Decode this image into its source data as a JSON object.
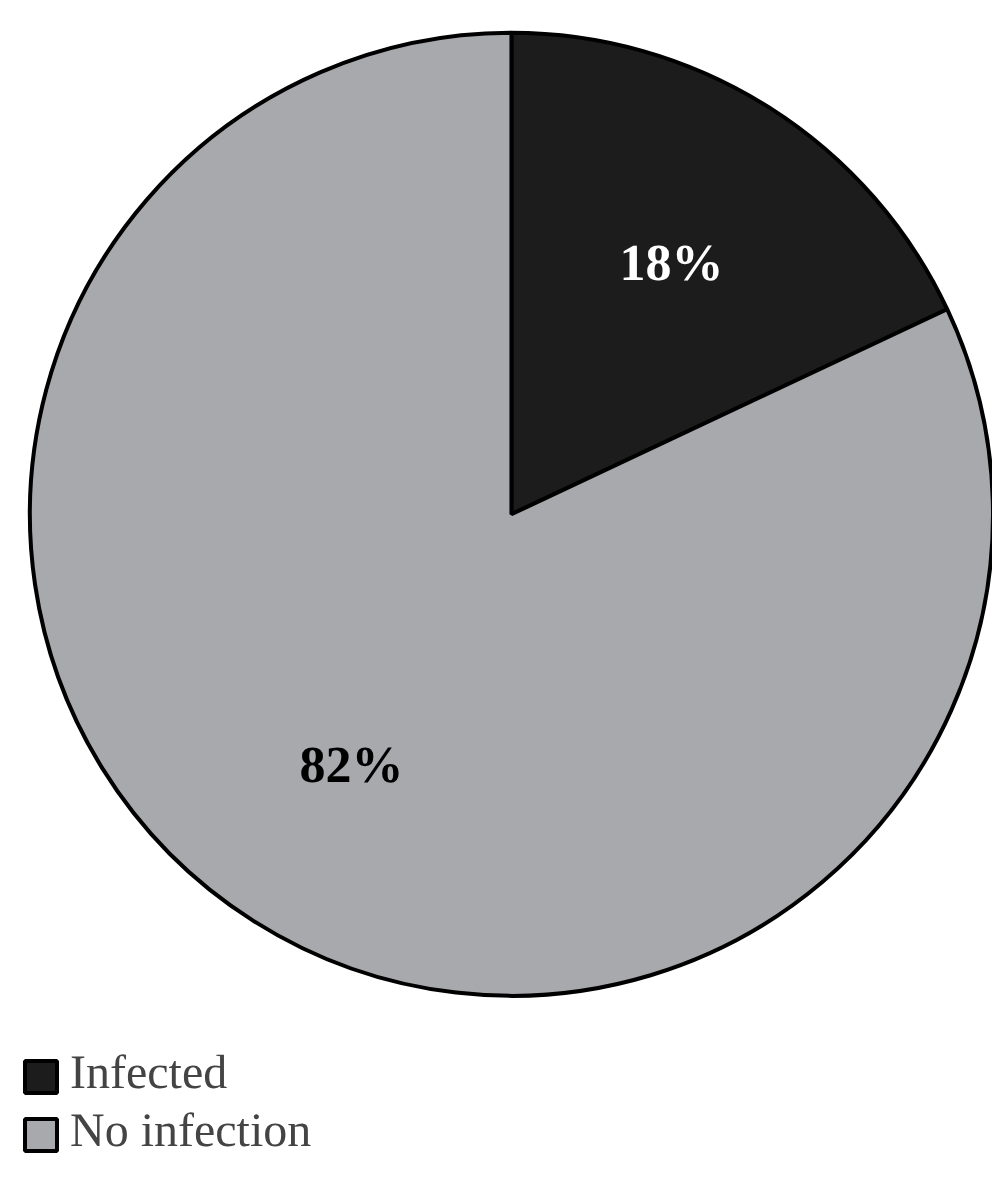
{
  "chart_data": {
    "type": "pie",
    "categories": [
      "Infected",
      "No infection"
    ],
    "values": [
      18,
      82
    ],
    "colors": [
      "#1c1c1c",
      "#a8a9ad"
    ],
    "value_labels": [
      "18%",
      "82%"
    ],
    "legend": "bottom left"
  }
}
